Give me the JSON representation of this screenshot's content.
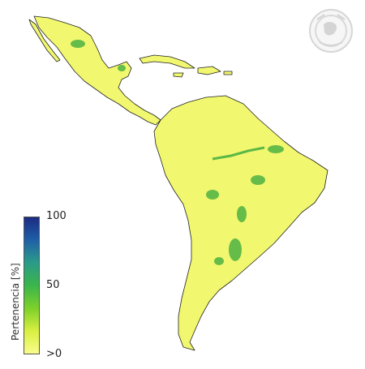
{
  "legend": {
    "title": "Pertenencia [%]",
    "ticks": {
      "max": "100",
      "mid": "50",
      "min": ">0"
    },
    "colors": [
      "#1b2a80",
      "#1f5fa8",
      "#2a9a8a",
      "#3ab54a",
      "#7fd12a",
      "#d8ef40",
      "#fbfd8e"
    ]
  },
  "map": {
    "land_fill": "#f1f76f",
    "coast_color": "#222222",
    "hotspot_color": "#37a83b"
  },
  "logo": {
    "icon": "institution-seal-icon"
  }
}
